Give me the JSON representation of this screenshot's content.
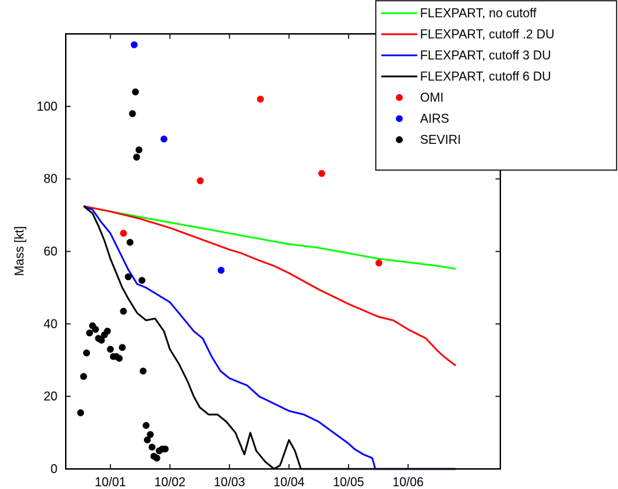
{
  "chart_data": {
    "type": "line",
    "title": "",
    "xlabel": "",
    "ylabel": "Mass [kt]",
    "xlim": [
      -0.75,
      6.55
    ],
    "ylim": [
      0,
      120
    ],
    "x_ticks": [
      {
        "value": 0,
        "label": "10/01"
      },
      {
        "value": 1,
        "label": "10/02"
      },
      {
        "value": 2,
        "label": "10/03"
      },
      {
        "value": 3,
        "label": "10/04"
      },
      {
        "value": 4,
        "label": "10/05"
      },
      {
        "value": 5,
        "label": "10/06"
      }
    ],
    "y_ticks": [
      0,
      20,
      40,
      60,
      80,
      100
    ],
    "grid": false,
    "legend": "top-right",
    "series": [
      {
        "name": "FLEXPART, no cutoff",
        "kind": "line",
        "color": "#00ff00",
        "points": [
          [
            -0.45,
            72.5
          ],
          [
            0,
            71
          ],
          [
            0.5,
            69.5
          ],
          [
            1,
            68
          ],
          [
            1.5,
            66.5
          ],
          [
            2,
            65
          ],
          [
            2.5,
            63.5
          ],
          [
            3,
            62
          ],
          [
            3.5,
            61
          ],
          [
            4,
            59.5
          ],
          [
            4.5,
            58
          ],
          [
            5,
            57
          ],
          [
            5.5,
            56
          ],
          [
            5.8,
            55.2
          ]
        ]
      },
      {
        "name": "FLEXPART, cutoff .2 DU",
        "kind": "line",
        "color": "#ff0000",
        "points": [
          [
            -0.45,
            72.5
          ],
          [
            0,
            71
          ],
          [
            0.5,
            69
          ],
          [
            1,
            66.5
          ],
          [
            1.5,
            63.5
          ],
          [
            2,
            60.5
          ],
          [
            2.2,
            59.5
          ],
          [
            2.5,
            57.5
          ],
          [
            2.75,
            56
          ],
          [
            3,
            54
          ],
          [
            3.5,
            49.5
          ],
          [
            4,
            45.5
          ],
          [
            4.5,
            42
          ],
          [
            4.75,
            41
          ],
          [
            5,
            38.5
          ],
          [
            5.3,
            36
          ],
          [
            5.5,
            32.5
          ],
          [
            5.6,
            31
          ],
          [
            5.8,
            28.5
          ]
        ]
      },
      {
        "name": "FLEXPART, cutoff 3 DU",
        "kind": "line",
        "color": "#0000ff",
        "points": [
          [
            -0.45,
            72.5
          ],
          [
            -0.3,
            71.5
          ],
          [
            -0.15,
            68
          ],
          [
            0,
            65
          ],
          [
            0.15,
            60
          ],
          [
            0.3,
            55
          ],
          [
            0.45,
            51
          ],
          [
            0.6,
            50
          ],
          [
            0.75,
            48.5
          ],
          [
            1,
            46
          ],
          [
            1.1,
            44
          ],
          [
            1.25,
            41
          ],
          [
            1.4,
            38
          ],
          [
            1.55,
            36
          ],
          [
            1.7,
            31
          ],
          [
            1.85,
            27
          ],
          [
            2,
            25
          ],
          [
            2.15,
            24
          ],
          [
            2.3,
            23
          ],
          [
            2.5,
            20
          ],
          [
            2.75,
            18
          ],
          [
            3,
            16
          ],
          [
            3.25,
            15
          ],
          [
            3.5,
            13
          ],
          [
            3.75,
            10
          ],
          [
            4,
            7
          ],
          [
            4.1,
            5.5
          ],
          [
            4.25,
            4
          ],
          [
            4.4,
            3
          ],
          [
            4.45,
            0
          ],
          [
            5.8,
            0
          ]
        ]
      },
      {
        "name": "FLEXPART, cutoff 6 DU",
        "kind": "line",
        "color": "#000000",
        "points": [
          [
            -0.45,
            72.5
          ],
          [
            -0.3,
            70.5
          ],
          [
            -0.2,
            67
          ],
          [
            -0.1,
            63
          ],
          [
            0,
            58
          ],
          [
            0.1,
            54
          ],
          [
            0.2,
            50
          ],
          [
            0.3,
            47
          ],
          [
            0.45,
            43
          ],
          [
            0.6,
            41
          ],
          [
            0.75,
            41.5
          ],
          [
            0.9,
            38
          ],
          [
            1.0,
            33
          ],
          [
            1.15,
            29
          ],
          [
            1.3,
            24
          ],
          [
            1.4,
            20
          ],
          [
            1.5,
            17
          ],
          [
            1.65,
            15
          ],
          [
            1.8,
            15
          ],
          [
            1.95,
            13
          ],
          [
            2.1,
            10
          ],
          [
            2.25,
            4
          ],
          [
            2.35,
            10
          ],
          [
            2.45,
            5
          ],
          [
            2.6,
            2
          ],
          [
            2.75,
            0
          ],
          [
            2.85,
            1
          ],
          [
            3,
            8
          ],
          [
            3.1,
            5
          ],
          [
            3.2,
            0
          ],
          [
            5.8,
            0
          ]
        ]
      },
      {
        "name": "OMI",
        "kind": "scatter",
        "color": "#ff0000",
        "points": [
          [
            0.22,
            65
          ],
          [
            1.51,
            79.5
          ],
          [
            2.52,
            102
          ],
          [
            3.55,
            81.5
          ],
          [
            4.51,
            56.8
          ]
        ]
      },
      {
        "name": "AIRS",
        "kind": "scatter",
        "color": "#0000ff",
        "points": [
          [
            0.4,
            117
          ],
          [
            0.9,
            91
          ],
          [
            1.86,
            54.8
          ]
        ]
      },
      {
        "name": "SEVIRI",
        "kind": "scatter",
        "color": "#000000",
        "points": [
          [
            -0.5,
            15.5
          ],
          [
            -0.45,
            25.5
          ],
          [
            -0.4,
            32
          ],
          [
            -0.35,
            37.5
          ],
          [
            -0.3,
            39.5
          ],
          [
            -0.25,
            38.5
          ],
          [
            -0.2,
            36
          ],
          [
            -0.15,
            35.5
          ],
          [
            -0.1,
            37
          ],
          [
            -0.05,
            38
          ],
          [
            0,
            33
          ],
          [
            0.05,
            31
          ],
          [
            0.1,
            31
          ],
          [
            0.15,
            30.5
          ],
          [
            0.2,
            33.5
          ],
          [
            0.22,
            43.5
          ],
          [
            0.3,
            53
          ],
          [
            0.33,
            62.5
          ],
          [
            0.37,
            98
          ],
          [
            0.42,
            104
          ],
          [
            0.44,
            86
          ],
          [
            0.48,
            88
          ],
          [
            0.53,
            52
          ],
          [
            0.55,
            27
          ],
          [
            0.6,
            12
          ],
          [
            0.62,
            8
          ],
          [
            0.67,
            9.5
          ],
          [
            0.7,
            6
          ],
          [
            0.73,
            3.5
          ],
          [
            0.78,
            3
          ],
          [
            0.82,
            5
          ],
          [
            0.87,
            5.5
          ],
          [
            0.92,
            5.5
          ]
        ]
      }
    ]
  }
}
